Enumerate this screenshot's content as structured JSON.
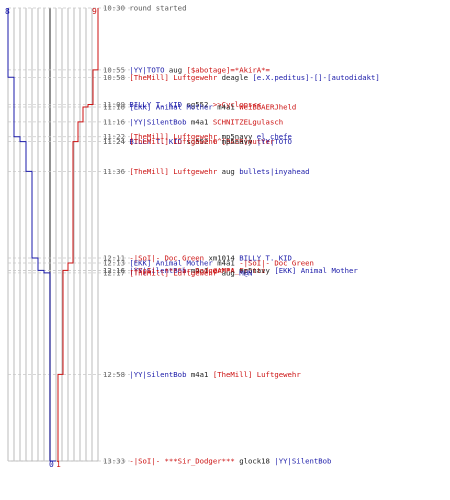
{
  "colors": {
    "blue_team": "#1a1aa8",
    "red_team": "#cc1111",
    "timestamp": "#666666",
    "gridline": "#bbbbbb"
  },
  "scores": {
    "blue_start": "8",
    "red_start": "9",
    "blue_end": "0",
    "red_end": "1"
  },
  "events": [
    {
      "time": "10:30",
      "parts": [
        {
          "t": "round started",
          "c": "round"
        }
      ]
    },
    {
      "time": "10:55",
      "parts": [
        {
          "t": "|YY|TOTO",
          "c": "blue"
        },
        {
          "t": " aug ",
          "c": "dark"
        },
        {
          "t": "[$abotage]=*AkirA*=",
          "c": "red"
        }
      ]
    },
    {
      "time": "10:58",
      "parts": [
        {
          "t": "[TheMill] Luftgewehr",
          "c": "red"
        },
        {
          "t": " deagle ",
          "c": "dark"
        },
        {
          "t": "[e.X.peditus]-[]-[autodidakt]",
          "c": "blue"
        }
      ]
    },
    {
      "time": "11:09",
      "parts": [
        {
          "t": "BILLY T. KID",
          "c": "blue"
        },
        {
          "t": " sg552 ",
          "c": "dark"
        },
        {
          "t": ">>Cyclops<<",
          "c": "red"
        }
      ]
    },
    {
      "time": "11:10",
      "parts": [
        {
          "t": "[EKK] Animal Mother",
          "c": "blue"
        },
        {
          "t": " m4a1 ",
          "c": "dark"
        },
        {
          "t": "WeiBBAERJheld",
          "c": "red"
        }
      ]
    },
    {
      "time": "11:16",
      "parts": [
        {
          "t": "|YY|SilentBob",
          "c": "blue"
        },
        {
          "t": " m4a1 ",
          "c": "dark"
        },
        {
          "t": "SCHNITZELgulasch",
          "c": "red"
        }
      ]
    },
    {
      "time": "11:22",
      "parts": [
        {
          "t": "[TheMill] Luftgewehr",
          "c": "red"
        },
        {
          "t": " mp5navy ",
          "c": "dark"
        },
        {
          "t": "el chefe",
          "c": "blue"
        }
      ]
    },
    {
      "time": "11:24",
      "parts": [
        {
          "t": "BILLY T. KID",
          "c": "blue"
        },
        {
          "t": " sg552 ",
          "c": "dark"
        },
        {
          "t": "G^[BAER]mutter",
          "c": "red"
        }
      ]
    },
    {
      "time": "11:24",
      "parts": [
        {
          "t": "[TheMill] Luftgewehr",
          "c": "red"
        },
        {
          "t": " mp5navy ",
          "c": "dark"
        },
        {
          "t": "|YY|TOTO",
          "c": "blue"
        }
      ]
    },
    {
      "time": "11:36",
      "parts": [
        {
          "t": "[TheMill] Luftgewehr",
          "c": "red"
        },
        {
          "t": " aug ",
          "c": "dark"
        },
        {
          "t": "bullets|inyahead",
          "c": "blue"
        }
      ]
    },
    {
      "time": "12:11",
      "parts": [
        {
          "t": "-|SoI|- Doc Green",
          "c": "red"
        },
        {
          "t": " xm1014 ",
          "c": "dark"
        },
        {
          "t": "BILLY T. KID",
          "c": "blue"
        }
      ]
    },
    {
      "time": "12:13",
      "parts": [
        {
          "t": "[EKK] Animal Mother",
          "c": "blue"
        },
        {
          "t": " m4a1 ",
          "c": "dark"
        },
        {
          "t": "-|SoI|- Doc Green",
          "c": "red"
        }
      ]
    },
    {
      "time": "12:16",
      "parts": [
        {
          "t": "|YY|SilentBob",
          "c": "blue"
        },
        {
          "t": " m4a1 ",
          "c": "dark"
        },
        {
          "t": "@AMPA_Frutti",
          "c": "red"
        }
      ]
    },
    {
      "time": "12:16",
      "parts": [
        {
          "t": "-|SoI|- ***Sir_Dodger***",
          "c": "red"
        },
        {
          "t": " mp5navy ",
          "c": "dark"
        },
        {
          "t": "[EKK] Animal Mother",
          "c": "blue"
        }
      ]
    },
    {
      "time": "12:17",
      "parts": [
        {
          "t": "[TheMill] Luftgewehr",
          "c": "red"
        },
        {
          "t": " aug ",
          "c": "dark"
        },
        {
          "t": "M@N",
          "c": "blue"
        }
      ]
    },
    {
      "time": "12:58",
      "parts": [
        {
          "t": "|YY|SilentBob",
          "c": "blue"
        },
        {
          "t": " m4a1 ",
          "c": "dark"
        },
        {
          "t": "[TheMill] Luftgewehr",
          "c": "red"
        }
      ]
    },
    {
      "time": "13:33",
      "parts": [
        {
          "t": "-|SoI|- ***Sir_Dodger***",
          "c": "red"
        },
        {
          "t": " glock18 ",
          "c": "dark"
        },
        {
          "t": "|YY|SilentBob",
          "c": "blue"
        }
      ]
    }
  ]
}
